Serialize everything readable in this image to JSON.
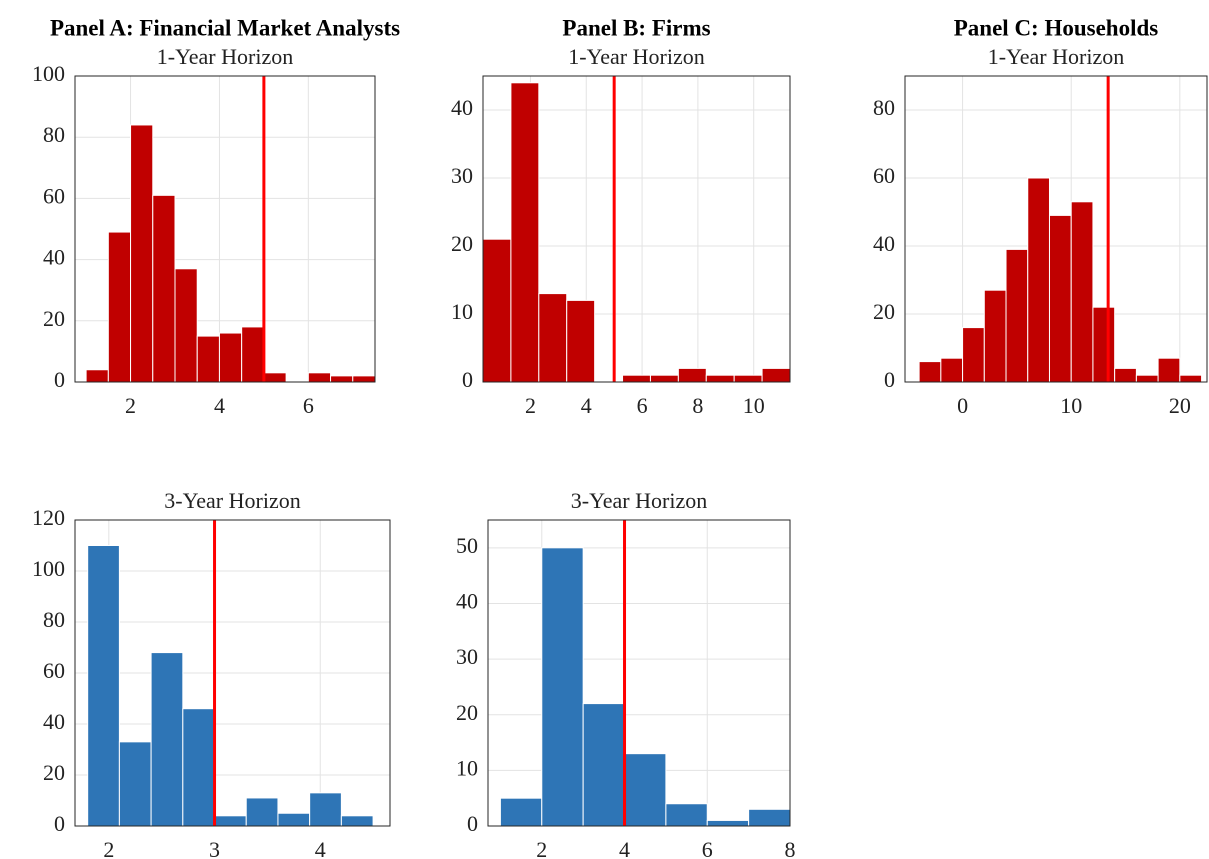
{
  "chart_data": [
    {
      "type": "histogram",
      "title": "Panel A: Financial Market Analysts",
      "subtitle": "1-Year Horizon",
      "bins": [
        1.0,
        1.5,
        2.0,
        2.5,
        3.0,
        3.5,
        4.0,
        4.5,
        5.0,
        5.5,
        6.0,
        6.5,
        7.0,
        7.5
      ],
      "counts": [
        4,
        49,
        84,
        61,
        37,
        15,
        16,
        18,
        3,
        0,
        3,
        2,
        2
      ],
      "color": "#c00000",
      "xlim": [
        0.75,
        7.5
      ],
      "xticks": [
        2,
        4,
        6
      ],
      "ylim": [
        0,
        100
      ],
      "yticks": [
        0,
        20,
        40,
        60,
        80,
        100
      ],
      "grid": true,
      "reference_line": 5,
      "reference_color": "#ff0000"
    },
    {
      "type": "histogram",
      "title": "Panel B: Firms",
      "subtitle": "1-Year Horizon",
      "bins": [
        0.3,
        1.3,
        2.3,
        3.3,
        4.3,
        5.3,
        6.3,
        7.3,
        8.3,
        9.3,
        10.3,
        11.3
      ],
      "counts": [
        21,
        44,
        13,
        12,
        0,
        1,
        1,
        2,
        1,
        1,
        2
      ],
      "color": "#c00000",
      "xlim": [
        0.3,
        11.3
      ],
      "xticks": [
        2,
        4,
        6,
        8,
        10
      ],
      "ylim": [
        0,
        45
      ],
      "yticks": [
        0,
        10,
        20,
        30,
        40
      ],
      "grid": true,
      "reference_line": 5,
      "reference_color": "#ff0000"
    },
    {
      "type": "histogram",
      "title": "Panel C: Households",
      "subtitle": "1-Year Horizon",
      "bins": [
        -4,
        -2,
        0,
        2,
        4,
        6,
        8,
        10,
        12,
        14,
        16,
        18,
        20,
        22
      ],
      "counts": [
        6,
        7,
        16,
        27,
        39,
        60,
        49,
        53,
        22,
        4,
        2,
        7,
        2
      ],
      "color": "#c00000",
      "xlim": [
        -5.3,
        22.5
      ],
      "xticks": [
        0,
        10,
        20
      ],
      "ylim": [
        0,
        90
      ],
      "yticks": [
        0,
        20,
        40,
        60,
        80
      ],
      "grid": true,
      "reference_line": 13.4,
      "reference_color": "#ff0000"
    },
    {
      "type": "histogram",
      "subtitle": "3-Year Horizon",
      "bins": [
        1.8,
        2.1,
        2.4,
        2.7,
        3.0,
        3.3,
        3.6,
        3.9,
        4.2,
        4.5
      ],
      "counts": [
        110,
        33,
        68,
        46,
        4,
        11,
        5,
        13,
        4
      ],
      "color": "#2e75b6",
      "xlim": [
        1.68,
        4.66
      ],
      "xticks": [
        2,
        3,
        4
      ],
      "ylim": [
        0,
        120
      ],
      "yticks": [
        0,
        20,
        40,
        60,
        80,
        100,
        120
      ],
      "grid": true,
      "reference_line": 3,
      "reference_color": "#ff0000"
    },
    {
      "type": "histogram",
      "subtitle": "3-Year Horizon",
      "bins": [
        1,
        2,
        3,
        4,
        5,
        6,
        7,
        8
      ],
      "counts": [
        5,
        50,
        22,
        13,
        4,
        1,
        3
      ],
      "color": "#2e75b6",
      "xlim": [
        0.7,
        8
      ],
      "xticks": [
        2,
        4,
        6,
        8
      ],
      "ylim": [
        0,
        55
      ],
      "yticks": [
        0,
        10,
        20,
        30,
        40,
        50
      ],
      "grid": true,
      "reference_line": 4,
      "reference_color": "#ff0000"
    }
  ]
}
